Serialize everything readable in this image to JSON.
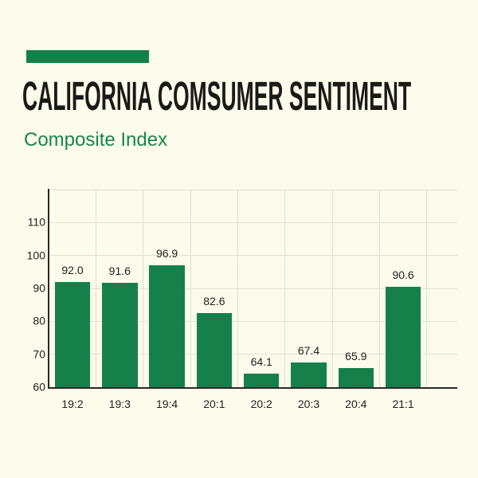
{
  "header": {
    "title": "CALIFORNIA COMSUMER SENTIMENT",
    "subtitle": "Composite Index"
  },
  "colors": {
    "background": "#FCFBEC",
    "bar": "#15804A",
    "accent_bar": "#15804A",
    "subtitle_green": "#17864A",
    "title_ink": "#1B1A16",
    "label_ink": "#22211D",
    "gridline": "#E3E2D2",
    "axis": "#2B2A24"
  },
  "chart_data": {
    "type": "bar",
    "title": "CALIFORNIA COMSUMER SENTIMENT",
    "subtitle": "Composite Index",
    "categories": [
      "19:2",
      "19:3",
      "19:4",
      "20:1",
      "20:2",
      "20:3",
      "20:4",
      "21:1"
    ],
    "values": [
      92.0,
      91.6,
      96.9,
      82.6,
      64.1,
      67.4,
      65.9,
      90.6
    ],
    "value_labels": [
      "92.0",
      "91.6",
      "96.9",
      "82.6",
      "64.1",
      "67.4",
      "65.9",
      "90.6"
    ],
    "xlabel": "",
    "ylabel": "",
    "ylim": [
      60,
      120
    ],
    "yticks": [
      60,
      70,
      80,
      90,
      100,
      110
    ],
    "ytick_labels": [
      "60",
      "70",
      "80",
      "90",
      "100",
      "110"
    ],
    "grid": true,
    "legend": "none",
    "bar_color": "#15804A"
  }
}
